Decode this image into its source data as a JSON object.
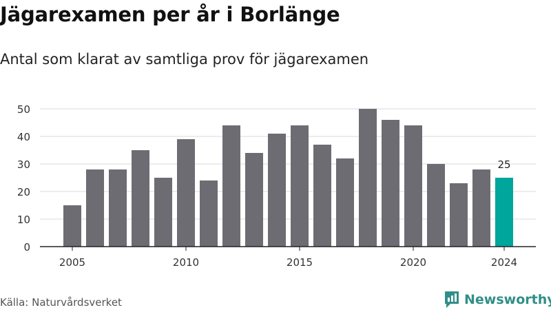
{
  "header": {
    "title": "Jägarexamen per år i Borlänge",
    "subtitle": "Antal som klarat av samtliga prov för jägarexamen"
  },
  "footer": {
    "source": "Källa: Naturvårdsverket",
    "brand": "Newsworthy"
  },
  "colors": {
    "bar": "#6d6c73",
    "highlight": "#00a59b",
    "grid": "#d9d9d9",
    "brand": "#2f8f88"
  },
  "icons": {
    "brand_logo": "newsworthy-logo-icon"
  },
  "chart_data": {
    "type": "bar",
    "x": [
      2005,
      2006,
      2007,
      2008,
      2009,
      2010,
      2011,
      2012,
      2013,
      2014,
      2015,
      2016,
      2017,
      2018,
      2019,
      2020,
      2021,
      2022,
      2023,
      2024
    ],
    "values": [
      15,
      28,
      28,
      35,
      25,
      39,
      24,
      44,
      34,
      41,
      44,
      37,
      32,
      50,
      46,
      44,
      30,
      23,
      28,
      25
    ],
    "highlight": {
      "x": 2024,
      "label": "25"
    },
    "x_ticks": [
      2005,
      2010,
      2015,
      2020,
      2024
    ],
    "y_ticks": [
      0,
      10,
      20,
      30,
      40,
      50
    ],
    "ylim": [
      0,
      50
    ],
    "grid": true,
    "xlabel": "",
    "ylabel": ""
  }
}
